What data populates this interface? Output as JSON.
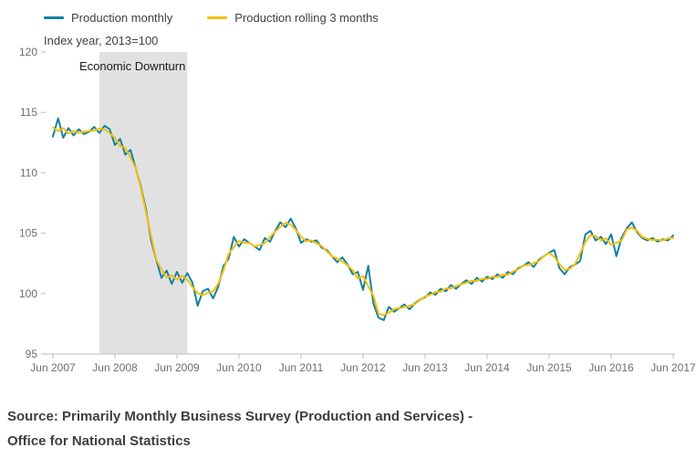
{
  "subtitle": "Index year, 2013=100",
  "source": {
    "line1": "Source: Primarily Monthly Business Survey (Production and Services) -",
    "line2": "Office for National Statistics"
  },
  "chart_data": {
    "type": "line",
    "title": "",
    "subtitle": "Index year, 2013=100",
    "x_start_month": "2007-06",
    "x_end_month": "2017-06",
    "x_tick_labels": [
      "Jun 2007",
      "Jun 2008",
      "Jun 2009",
      "Jun 2010",
      "Jun 2011",
      "Jun 2012",
      "Jun 2013",
      "Jun 2014",
      "Jun 2015",
      "Jun 2016",
      "Jun 2017"
    ],
    "ylim": [
      95,
      120
    ],
    "yticks": [
      95,
      100,
      105,
      110,
      115,
      120
    ],
    "grid": false,
    "legend_position": "top-left",
    "band": {
      "label": "Economic Downturn",
      "start": "2008-03",
      "end": "2009-08",
      "color": "#E1E1E1"
    },
    "colors": {
      "axis": "#BDBDBD",
      "tick_label": "#6E6E6E",
      "band_label": "#1A1A1A"
    },
    "series": [
      {
        "name": "Production monthly",
        "color": "#1380A1",
        "values": [
          113.0,
          114.5,
          112.9,
          113.7,
          113.1,
          113.6,
          113.2,
          113.4,
          113.8,
          113.3,
          113.9,
          113.6,
          112.3,
          112.8,
          111.5,
          111.9,
          110.4,
          108.9,
          107.0,
          104.4,
          102.8,
          101.3,
          101.9,
          100.8,
          101.8,
          100.9,
          101.7,
          100.9,
          99.0,
          100.2,
          100.4,
          99.6,
          100.6,
          102.3,
          102.9,
          104.7,
          103.9,
          104.5,
          104.2,
          103.9,
          103.6,
          104.6,
          104.3,
          105.2,
          105.9,
          105.5,
          106.2,
          105.4,
          104.2,
          104.5,
          104.3,
          104.4,
          103.8,
          103.6,
          103.1,
          102.6,
          103.0,
          102.4,
          101.6,
          101.8,
          100.3,
          102.3,
          99.2,
          98.0,
          97.8,
          98.9,
          98.5,
          98.8,
          99.1,
          98.7,
          99.2,
          99.5,
          99.7,
          100.1,
          99.9,
          100.4,
          100.2,
          100.7,
          100.4,
          100.8,
          101.1,
          100.8,
          101.3,
          101.0,
          101.4,
          101.2,
          101.6,
          101.3,
          101.8,
          101.6,
          102.1,
          102.3,
          102.6,
          102.2,
          102.8,
          103.1,
          103.4,
          103.6,
          102.1,
          101.6,
          102.2,
          102.4,
          102.7,
          104.9,
          105.2,
          104.4,
          104.7,
          104.1,
          104.9,
          103.1,
          104.6,
          105.4,
          105.9,
          105.1,
          104.6,
          104.4,
          104.6,
          104.3,
          104.5,
          104.4,
          104.8
        ]
      },
      {
        "name": "Production rolling 3 months",
        "color": "#F5C003",
        "derived": "3-month centred mean of Production monthly",
        "values": []
      }
    ]
  }
}
